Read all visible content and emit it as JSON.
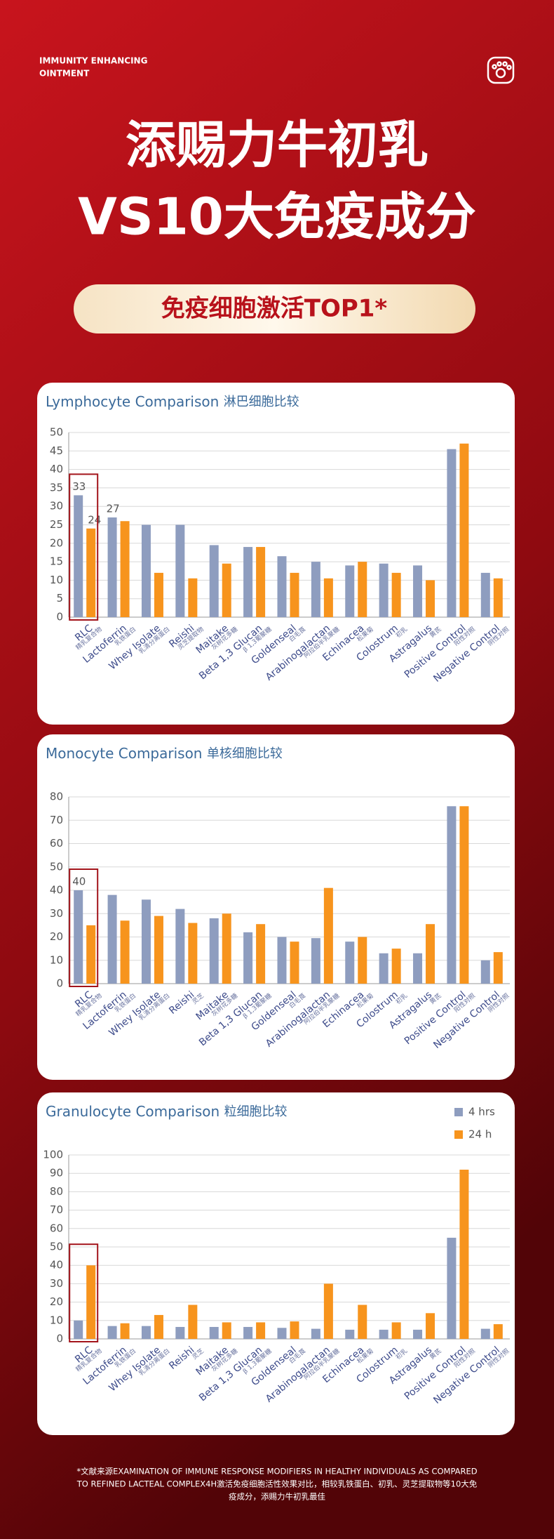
{
  "header": {
    "brand": [
      "IMMUNITY ENHANCING",
      "OINTMENT"
    ],
    "title": [
      "添赐力牛初乳",
      "VS10大免疫成分"
    ],
    "badge": "免疫细胞激活TOP1*"
  },
  "chart_data": [
    {
      "type": "bar",
      "title": "Lymphocyte Comparison",
      "subtitle": "淋巴细胞比较",
      "categories": [
        "RLC",
        "Lactoferrin",
        "Whey Isolate",
        "Reishi",
        "Maitake",
        "Beta 1,3 Glucan",
        "Goldenseal",
        "Arabinogalactan",
        "Echinacea",
        "Colostrum",
        "Astragalus",
        "Positive Control",
        "Negative Control"
      ],
      "category_labels_cn": [
        "精乳复合物",
        "乳铁蛋白",
        "乳清分离蛋白",
        "灵芝提取物",
        "灰树花多糖",
        "β 1,3葡聚糖",
        "白毛莨",
        "阿拉伯半乳聚糖",
        "松果菊",
        "初乳",
        "黄芪",
        "阳性对照",
        "阴性对照"
      ],
      "series": [
        {
          "color": "#8e9dbf",
          "values": [
            33,
            27,
            25,
            25,
            19.5,
            19,
            16.5,
            15,
            14,
            14.5,
            14,
            45.5,
            12
          ],
          "value_labels": [
            "33",
            "27",
            null,
            null,
            null,
            null,
            null,
            null,
            null,
            null,
            null,
            null,
            null
          ]
        },
        {
          "color": "#f7941d",
          "values": [
            24,
            26,
            12,
            10.5,
            14.5,
            19,
            12,
            10.5,
            15,
            12,
            10,
            47,
            10.5
          ],
          "value_labels": [
            "24",
            null,
            null,
            null,
            null,
            null,
            null,
            null,
            null,
            null,
            null,
            null,
            null
          ]
        }
      ],
      "ylim": [
        0,
        50
      ],
      "yticks": [
        0,
        5,
        10,
        15,
        20,
        25,
        30,
        35,
        40,
        45,
        50
      ],
      "grid": true
    },
    {
      "type": "bar",
      "title": "Monocyte Comparison",
      "subtitle": "单核细胞比较",
      "categories": [
        "RLC",
        "Lactoferrin",
        "Whey Isolate",
        "Reishi",
        "Maitake",
        "Beta 1,3 Glucan",
        "Goldenseal",
        "Arabinogalactan",
        "Echinacea",
        "Colostrum",
        "Astragalus",
        "Positive Control",
        "Negative Control"
      ],
      "category_labels_cn": [
        "精乳复合物",
        "乳铁蛋白",
        "乳清分离蛋白",
        "灵芝",
        "灰树花多糖",
        "β 1,3葡聚糖",
        "白毛莨",
        "阿拉伯半乳聚糖",
        "松果菊",
        "初乳",
        "黄芪",
        "阳性对照",
        "阴性对照"
      ],
      "series": [
        {
          "color": "#8e9dbf",
          "values": [
            40,
            38,
            36,
            32,
            28,
            22,
            20,
            19.5,
            18,
            13,
            13,
            76,
            10
          ],
          "value_labels": [
            "40",
            null,
            null,
            null,
            null,
            null,
            null,
            null,
            null,
            null,
            null,
            null,
            null
          ]
        },
        {
          "color": "#f7941d",
          "values": [
            25,
            27,
            29,
            26,
            30,
            25.5,
            18,
            41,
            20,
            15,
            25.5,
            76,
            13.5
          ]
        }
      ],
      "ylim": [
        0,
        80
      ],
      "yticks": [
        0,
        10,
        20,
        30,
        40,
        50,
        60,
        70,
        80
      ],
      "grid": true
    },
    {
      "type": "bar",
      "title": "Granulocyte Comparison",
      "subtitle": "粒细胞比较",
      "categories": [
        "RLC",
        "Lactoferrin",
        "Whey Isolate",
        "Reishi",
        "Maitake",
        "Beta 1,3 Glucan",
        "Goldenseal",
        "Arabinogalactan",
        "Echinacea",
        "Colostrum",
        "Astragalus",
        "Positive Control",
        "Negative Control"
      ],
      "category_labels_cn": [
        "精乳复合物",
        "乳铁蛋白",
        "乳清分离蛋白",
        "灵芝",
        "灰树花多糖",
        "β 1,3葡聚糖",
        "白毛莨",
        "阿拉伯半乳聚糖",
        "松果菊",
        "初乳",
        "黄芪",
        "阳性对照",
        "阴性对照"
      ],
      "series": [
        {
          "name": "4 hrs",
          "color": "#8e9dbf",
          "values": [
            10,
            7,
            7,
            6.5,
            6.5,
            6.5,
            6,
            5.5,
            5,
            5,
            5,
            55,
            5.5
          ]
        },
        {
          "name": "24 h",
          "color": "#f7941d",
          "values": [
            40,
            8.5,
            13,
            18.5,
            9,
            9,
            9.5,
            30,
            18.5,
            9,
            14,
            92,
            8
          ]
        }
      ],
      "ylim": [
        0,
        100
      ],
      "yticks": [
        0,
        10,
        20,
        30,
        40,
        50,
        60,
        70,
        80,
        90,
        100
      ],
      "grid": true,
      "legend": "upper-right"
    }
  ],
  "footnote": [
    "*文献来源EXAMINATION OF IMMUNE RESPONSE MODIFIERS IN HEALTHY INDIVIDUALS AS COMPARED",
    "TO REFINED LACTEAL COMPLEX4H激活免疫细胞活性效果对比，相较乳铁蛋白、初乳、灵芝提取物等10大免",
    "疫成分，添赐力牛初乳最佳"
  ]
}
